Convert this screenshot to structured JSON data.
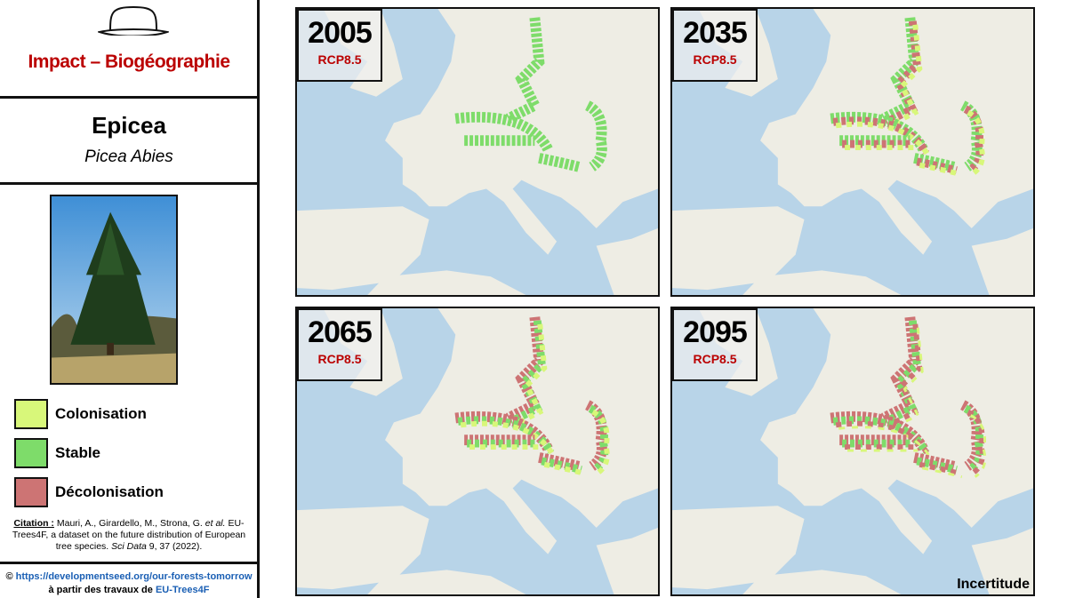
{
  "header": {
    "title": "Impact – Biogéographie"
  },
  "species": {
    "name": "Epicea",
    "latin": "Picea Abies"
  },
  "legend": {
    "items": [
      "Colonisation",
      "Stable",
      "Décolonisation"
    ]
  },
  "citation": {
    "label": "Citation :",
    "authors": "Mauri, A., Girardello, M., Strona, G.",
    "etal": "et al.",
    "text": "EU-Trees4F, a dataset on the future distribution of European tree species.",
    "journal": "Sci Data",
    "ref": "9, 37 (2022)."
  },
  "credit": {
    "symbol": "©",
    "url": "https://developmentseed.org/our-forests-tomorrow",
    "text": "à partir des travaux de",
    "source": "EU-Trees4F"
  },
  "maps": [
    {
      "year": "2005",
      "scenario": "RCP8.5"
    },
    {
      "year": "2035",
      "scenario": "RCP8.5"
    },
    {
      "year": "2065",
      "scenario": "RCP8.5"
    },
    {
      "year": "2095",
      "scenario": "RCP8.5"
    }
  ],
  "note": "Incertitude"
}
